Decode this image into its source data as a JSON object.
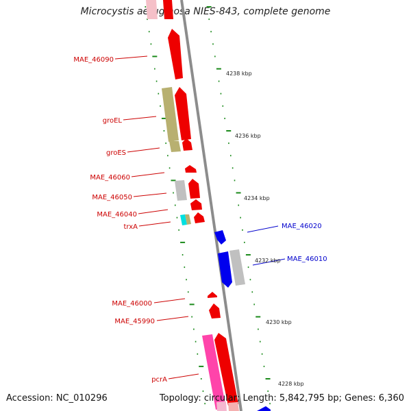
{
  "title": "Microcystis aeruginosa NIES-843, complete genome",
  "footer": {
    "accession": "Accession: NC_010296",
    "summary": "Topology: circular; Length: 5,842,795 bp; Genes: 6,360"
  },
  "colors": {
    "backbone": "#8c8c8c",
    "tick": "#1a8a1a",
    "forward_label": "#cc0000",
    "reverse_label": "#0000cc",
    "red_gene": "#ee0000",
    "olive_gene": "#b8b070",
    "gray_gene": "#c0c0c0",
    "blue_gene": "#0000ee",
    "cyan_gene": "#00e0e0",
    "pink_gene": "#ff44aa"
  },
  "scale_labels": [
    "4238 kbp",
    "4236 kbp",
    "4234 kbp",
    "4232 kbp",
    "4230 kbp",
    "4228 kbp"
  ],
  "forward_labels": [
    "MAE_46090",
    "groEL",
    "groES",
    "MAE_46060",
    "MAE_46050",
    "MAE_46040",
    "trxA",
    "MAE_46000",
    "MAE_45990",
    "pcrA"
  ],
  "reverse_labels": [
    "MAE_46020",
    "MAE_46010"
  ]
}
